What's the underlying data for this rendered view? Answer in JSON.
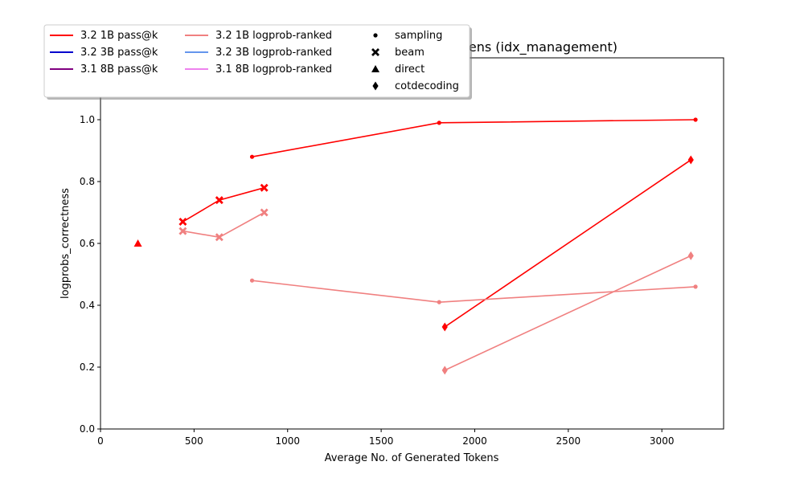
{
  "chart_data": {
    "type": "line",
    "title": "…ens (idx_management)",
    "xlabel": "Average No. of Generated Tokens",
    "ylabel": "logprobs_correctness",
    "xlim": [
      0,
      3330
    ],
    "ylim": [
      0,
      1.2
    ],
    "x_ticks": [
      0,
      500,
      1000,
      1500,
      2000,
      2500,
      3000
    ],
    "y_ticks": [
      0.0,
      0.2,
      0.4,
      0.6,
      0.8,
      1.0
    ],
    "grid": false,
    "legend_placement": "top-left, overlapping title",
    "legend": {
      "series_entries": [
        {
          "label": "3.2 1B pass@k",
          "color": "#ff0000"
        },
        {
          "label": "3.2 3B pass@k",
          "color": "#0000cd"
        },
        {
          "label": "3.1 8B pass@k",
          "color": "#800080"
        },
        {
          "label": "3.2 1B logprob-ranked",
          "color": "#f08080"
        },
        {
          "label": "3.2 3B logprob-ranked",
          "color": "#6495ed"
        },
        {
          "label": "3.1 8B logprob-ranked",
          "color": "#ee82ee"
        }
      ],
      "marker_entries": [
        {
          "label": "sampling",
          "marker": "dot"
        },
        {
          "label": "beam",
          "marker": "x"
        },
        {
          "label": "direct",
          "marker": "triangle"
        },
        {
          "label": "cotdecoding",
          "marker": "diamond"
        }
      ]
    },
    "series": [
      {
        "group": "3.2 1B pass@k",
        "method": "sampling",
        "color": "#ff0000",
        "marker": "dot",
        "points": [
          [
            810,
            0.88
          ],
          [
            1810,
            0.99
          ],
          [
            3180,
            1.0
          ]
        ]
      },
      {
        "group": "3.2 1B pass@k",
        "method": "beam",
        "color": "#ff0000",
        "marker": "x",
        "points": [
          [
            440,
            0.67
          ],
          [
            635,
            0.74
          ],
          [
            875,
            0.78
          ]
        ]
      },
      {
        "group": "3.2 1B pass@k",
        "method": "direct",
        "color": "#ff0000",
        "marker": "triangle",
        "points": [
          [
            200,
            0.6
          ]
        ]
      },
      {
        "group": "3.2 1B pass@k",
        "method": "cotdecoding",
        "color": "#ff0000",
        "marker": "diamond",
        "points": [
          [
            1840,
            0.33
          ],
          [
            3155,
            0.87
          ]
        ]
      },
      {
        "group": "3.2 1B logprob-ranked",
        "method": "sampling",
        "color": "#f08080",
        "marker": "dot",
        "points": [
          [
            810,
            0.48
          ],
          [
            1810,
            0.41
          ],
          [
            3180,
            0.46
          ]
        ]
      },
      {
        "group": "3.2 1B logprob-ranked",
        "method": "beam",
        "color": "#f08080",
        "marker": "x",
        "points": [
          [
            440,
            0.64
          ],
          [
            635,
            0.62
          ],
          [
            875,
            0.7
          ]
        ]
      },
      {
        "group": "3.2 1B logprob-ranked",
        "method": "cotdecoding",
        "color": "#f08080",
        "marker": "diamond",
        "points": [
          [
            1840,
            0.19
          ],
          [
            3155,
            0.56
          ]
        ]
      }
    ]
  }
}
